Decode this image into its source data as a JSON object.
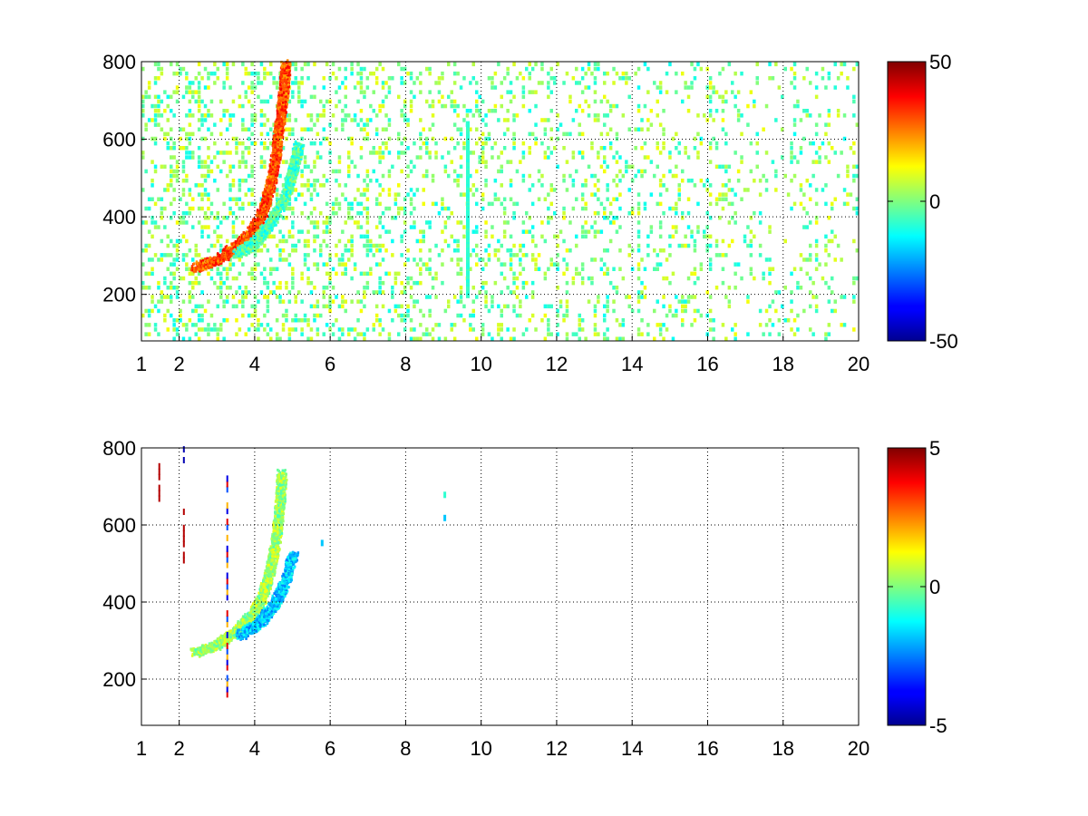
{
  "chart_data": [
    {
      "type": "heatmap",
      "title": "",
      "xlabel": "",
      "ylabel": "",
      "xlim": [
        1,
        20
      ],
      "ylim": [
        80,
        800
      ],
      "xticks": [
        1,
        2,
        4,
        6,
        8,
        10,
        12,
        14,
        16,
        18,
        20
      ],
      "yticks": [
        200,
        400,
        600,
        800
      ],
      "grid": true,
      "colormap": "jet",
      "colorbar": {
        "range": [
          -50,
          50
        ],
        "ticks": [
          50,
          0,
          -50
        ],
        "placement": "right"
      },
      "features": [
        {
          "kind": "ridge",
          "path": [
            [
              2.4,
              265
            ],
            [
              3.0,
              285
            ],
            [
              3.5,
              320
            ],
            [
              3.9,
              355
            ],
            [
              4.2,
              410
            ],
            [
              4.4,
              480
            ],
            [
              4.55,
              560
            ],
            [
              4.65,
              640
            ],
            [
              4.75,
              720
            ],
            [
              4.8,
              790
            ]
          ],
          "value": 30
        },
        {
          "kind": "ridge",
          "path": [
            [
              3.5,
              300
            ],
            [
              4.0,
              330
            ],
            [
              4.4,
              380
            ],
            [
              4.8,
              450
            ],
            [
              5.0,
              520
            ],
            [
              5.15,
              580
            ]
          ],
          "value": -5
        },
        {
          "kind": "band",
          "x": 9.6,
          "y_range": [
            190,
            640
          ],
          "value": -8
        }
      ],
      "background": {
        "x_range": [
          1,
          20
        ],
        "y_range": [
          80,
          800
        ],
        "fill_fraction_start": 0.55,
        "fill_fraction_end": 0.18,
        "value_range": [
          -12,
          12
        ]
      }
    },
    {
      "type": "heatmap",
      "title": "",
      "xlabel": "",
      "ylabel": "",
      "xlim": [
        1,
        20
      ],
      "ylim": [
        80,
        800
      ],
      "xticks": [
        1,
        2,
        4,
        6,
        8,
        10,
        12,
        14,
        16,
        18,
        20
      ],
      "yticks": [
        200,
        400,
        600,
        800
      ],
      "grid": true,
      "colormap": "jet",
      "colorbar": {
        "range": [
          -5,
          5
        ],
        "ticks": [
          5,
          0,
          -5
        ],
        "placement": "right"
      },
      "features": [
        {
          "kind": "ridge",
          "path": [
            [
              2.4,
              265
            ],
            [
              3.0,
              285
            ],
            [
              3.5,
              320
            ],
            [
              3.9,
              360
            ],
            [
              4.2,
              410
            ],
            [
              4.4,
              480
            ],
            [
              4.55,
              560
            ],
            [
              4.65,
              650
            ],
            [
              4.7,
              730
            ]
          ],
          "value": 0.3
        },
        {
          "kind": "ridge",
          "path": [
            [
              3.6,
              310
            ],
            [
              4.1,
              340
            ],
            [
              4.5,
              390
            ],
            [
              4.8,
              450
            ],
            [
              5.0,
              520
            ]
          ],
          "value": -1.8
        },
        {
          "kind": "streak",
          "x": 3.25,
          "y_range": [
            110,
            750
          ],
          "value_cycle": [
            4,
            -4,
            2,
            -3
          ]
        },
        {
          "kind": "streak",
          "x": 2.1,
          "y_range": [
            500,
            640
          ],
          "value": 4.5
        },
        {
          "kind": "streak",
          "x": 2.1,
          "y_range": [
            760,
            800
          ],
          "value": -4.5
        },
        {
          "kind": "streak",
          "x": 1.45,
          "y_range": [
            660,
            770
          ],
          "value": 4.5
        },
        {
          "kind": "dot",
          "x": 9.0,
          "y": 670,
          "value": -0.8
        },
        {
          "kind": "dot",
          "x": 9.0,
          "y": 610,
          "value": -1.8
        },
        {
          "kind": "dot",
          "x": 5.75,
          "y": 545,
          "value": -1.8
        }
      ]
    }
  ]
}
